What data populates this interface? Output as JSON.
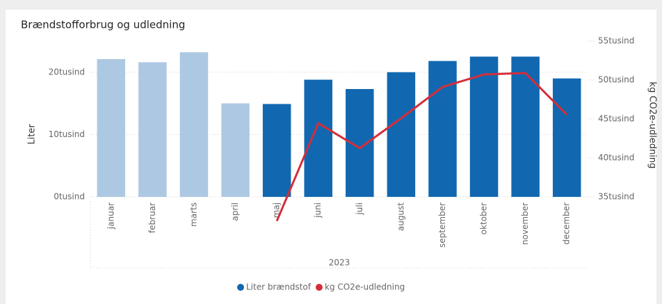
{
  "chart_data": {
    "type": "bar",
    "title": "Brændstofforbrug og udledning",
    "categories": [
      "januar",
      "februar",
      "marts",
      "april",
      "maj",
      "juni",
      "juli",
      "august",
      "september",
      "oktober",
      "november",
      "december"
    ],
    "x_label": "2023",
    "y_label": "Liter",
    "y2_label": "kg CO2e-udledning",
    "ylim": [
      0,
      25000
    ],
    "yticks": [
      {
        "value": 0,
        "label": "0tusind"
      },
      {
        "value": 10000,
        "label": "10tusind"
      },
      {
        "value": 20000,
        "label": "20tusind"
      }
    ],
    "y2lim": [
      35000,
      55000
    ],
    "y2ticks": [
      {
        "value": 35000,
        "label": "35tusind"
      },
      {
        "value": 40000,
        "label": "40tusind"
      },
      {
        "value": 45000,
        "label": "45tusind"
      },
      {
        "value": 50000,
        "label": "50tusind"
      },
      {
        "value": 55000,
        "label": "55tusind"
      }
    ],
    "grid": true,
    "legend": "bottom",
    "series": [
      {
        "name": "Liter brændstof",
        "type": "bar",
        "color": "#1168b0",
        "colors": [
          "#adc8e2",
          "#adc8e2",
          "#adc8e2",
          "#adc8e2",
          "#1168b0",
          "#1168b0",
          "#1168b0",
          "#1168b0",
          "#1168b0",
          "#1168b0",
          "#1168b0",
          "#1168b0"
        ],
        "values": [
          22100,
          21600,
          23200,
          15000,
          14900,
          18800,
          17300,
          20000,
          21800,
          22500,
          22500,
          19000
        ]
      },
      {
        "name": "kg CO2e-udledning",
        "type": "line",
        "axis": "y2",
        "color": "#d42e3a",
        "values": [
          null,
          null,
          null,
          null,
          31900,
          44460,
          41250,
          45090,
          49110,
          50710,
          50890,
          45540
        ]
      }
    ]
  }
}
